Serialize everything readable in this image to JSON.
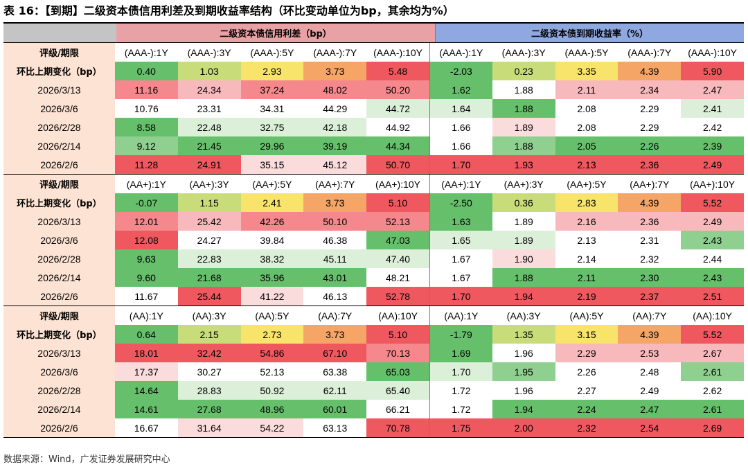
{
  "title": "表 16：【到期】二级资本债信用利差及到期收益率结构（环比变动单位为bp，其余均为%）",
  "header": {
    "spread_title": "二级资本债信用利差（bp）",
    "yield_title": "二级资本债到期收益率（%）"
  },
  "colors": {
    "corner": "#c4c4c4",
    "spread_header": "#e8a1a5",
    "yield_header": "#8fa9e0",
    "label_bg": "#fde3d3",
    "white": "#ffffff",
    "green_dark": "#66c06b",
    "green_mid": "#8fcf8f",
    "green_light": "#b6dfb4",
    "green_pale": "#dcefd9",
    "red_dark": "#f0585f",
    "red_mid": "#f5888d",
    "red_light": "#f8b9bc",
    "red_pale": "#fbdcdd",
    "yellow": "#f8e46a",
    "orange": "#f5a565",
    "yellow_green": "#c8dd7a"
  },
  "blocks": [
    {
      "label_header": "评级/期限",
      "spread_cols": [
        "(AAA-):1Y",
        "(AAA-):3Y",
        "(AAA-):5Y",
        "(AAA-):7Y",
        "(AAA-):10Y"
      ],
      "yield_cols": [
        "(AAA-):1Y",
        "(AAA-):3Y",
        "(AAA-):5Y",
        "(AAA-):7Y",
        "(AAA-):10Y"
      ],
      "rows": [
        {
          "label": "环比上期变化（bp）",
          "spread": [
            "0.40",
            "1.03",
            "2.93",
            "3.73",
            "5.48"
          ],
          "yield": [
            "-2.03",
            "0.23",
            "3.35",
            "4.39",
            "5.90"
          ]
        },
        {
          "label": "2026/3/13",
          "spread": [
            "11.16",
            "24.34",
            "37.24",
            "48.02",
            "50.20"
          ],
          "yield": [
            "1.62",
            "1.88",
            "2.11",
            "2.34",
            "2.47"
          ]
        },
        {
          "label": "2026/3/6",
          "spread": [
            "10.76",
            "23.31",
            "34.31",
            "44.29",
            "44.72"
          ],
          "yield": [
            "1.64",
            "1.88",
            "2.08",
            "2.29",
            "2.41"
          ]
        },
        {
          "label": "2026/2/28",
          "spread": [
            "8.58",
            "22.48",
            "32.75",
            "42.18",
            "44.92"
          ],
          "yield": [
            "1.66",
            "1.89",
            "2.08",
            "2.29",
            "2.42"
          ]
        },
        {
          "label": "2026/2/14",
          "spread": [
            "9.12",
            "21.45",
            "29.96",
            "39.19",
            "44.34"
          ],
          "yield": [
            "1.66",
            "1.88",
            "2.05",
            "2.26",
            "2.39"
          ]
        },
        {
          "label": "2026/2/6",
          "spread": [
            "11.28",
            "24.91",
            "35.15",
            "45.12",
            "50.70"
          ],
          "yield": [
            "1.70",
            "1.93",
            "2.13",
            "2.36",
            "2.49"
          ]
        }
      ],
      "row_colors": [
        {
          "spread": [
            "green_dark",
            "yellow_green",
            "yellow",
            "orange",
            "red_dark"
          ],
          "yield": [
            "green_dark",
            "yellow_green",
            "yellow",
            "orange",
            "red_dark"
          ]
        },
        {
          "spread": [
            "red_mid",
            "red_light",
            "red_mid",
            "red_mid",
            "red_mid"
          ],
          "yield": [
            "green_dark",
            "white",
            "red_light",
            "red_light",
            "red_light"
          ]
        },
        {
          "spread": [
            "white",
            "white",
            "white",
            "white",
            "green_pale"
          ],
          "yield": [
            "green_pale",
            "green_dark",
            "white",
            "white",
            "green_pale"
          ]
        },
        {
          "spread": [
            "green_dark",
            "green_pale",
            "green_pale",
            "green_pale",
            "white"
          ],
          "yield": [
            "white",
            "red_pale",
            "white",
            "white",
            "white"
          ]
        },
        {
          "spread": [
            "green_mid",
            "green_dark",
            "green_dark",
            "green_dark",
            "green_dark"
          ],
          "yield": [
            "white",
            "green_mid",
            "green_dark",
            "green_dark",
            "green_dark"
          ]
        },
        {
          "spread": [
            "red_dark",
            "red_dark",
            "red_pale",
            "red_pale",
            "red_dark"
          ],
          "yield": [
            "red_dark",
            "red_dark",
            "red_dark",
            "red_dark",
            "red_dark"
          ]
        }
      ]
    },
    {
      "label_header": "评级/期限",
      "spread_cols": [
        "(AA+):1Y",
        "(AA+):3Y",
        "(AA+):5Y",
        "(AA+):7Y",
        "(AA+):10Y"
      ],
      "yield_cols": [
        "(AA+):1Y",
        "(AA+):3Y",
        "(AA+):5Y",
        "(AA+):7Y",
        "(AA+):10Y"
      ],
      "rows": [
        {
          "label": "环比上期变化（bp）",
          "spread": [
            "-0.07",
            "1.15",
            "2.41",
            "3.73",
            "5.10"
          ],
          "yield": [
            "-2.50",
            "0.36",
            "2.83",
            "4.39",
            "5.52"
          ]
        },
        {
          "label": "2026/3/13",
          "spread": [
            "12.01",
            "25.42",
            "42.26",
            "50.10",
            "52.13"
          ],
          "yield": [
            "1.63",
            "1.89",
            "2.16",
            "2.36",
            "2.49"
          ]
        },
        {
          "label": "2026/3/6",
          "spread": [
            "12.08",
            "24.27",
            "39.84",
            "46.38",
            "47.03"
          ],
          "yield": [
            "1.65",
            "1.89",
            "2.13",
            "2.31",
            "2.43"
          ]
        },
        {
          "label": "2026/2/28",
          "spread": [
            "9.63",
            "22.83",
            "38.32",
            "45.11",
            "47.40"
          ],
          "yield": [
            "1.67",
            "1.90",
            "2.14",
            "2.32",
            "2.44"
          ]
        },
        {
          "label": "2026/2/14",
          "spread": [
            "9.60",
            "21.68",
            "35.96",
            "43.01",
            "48.21"
          ],
          "yield": [
            "1.67",
            "1.88",
            "2.11",
            "2.30",
            "2.43"
          ]
        },
        {
          "label": "2026/2/6",
          "spread": [
            "11.67",
            "25.44",
            "41.22",
            "46.13",
            "52.78"
          ],
          "yield": [
            "1.70",
            "1.94",
            "2.19",
            "2.37",
            "2.51"
          ]
        }
      ],
      "row_colors": [
        {
          "spread": [
            "green_dark",
            "yellow_green",
            "yellow",
            "orange",
            "red_dark"
          ],
          "yield": [
            "green_dark",
            "yellow_green",
            "yellow",
            "orange",
            "red_dark"
          ]
        },
        {
          "spread": [
            "red_mid",
            "red_light",
            "red_mid",
            "red_mid",
            "red_mid"
          ],
          "yield": [
            "green_dark",
            "white",
            "red_light",
            "red_light",
            "red_light"
          ]
        },
        {
          "spread": [
            "red_dark",
            "white",
            "white",
            "white",
            "green_dark"
          ],
          "yield": [
            "green_pale",
            "green_pale",
            "white",
            "white",
            "green_mid"
          ]
        },
        {
          "spread": [
            "green_dark",
            "green_pale",
            "green_pale",
            "green_pale",
            "green_pale"
          ],
          "yield": [
            "white",
            "red_pale",
            "white",
            "white",
            "white"
          ]
        },
        {
          "spread": [
            "green_dark",
            "green_dark",
            "green_dark",
            "green_dark",
            "white"
          ],
          "yield": [
            "white",
            "green_dark",
            "green_dark",
            "green_dark",
            "green_dark"
          ]
        },
        {
          "spread": [
            "white",
            "red_dark",
            "red_pale",
            "white",
            "red_dark"
          ],
          "yield": [
            "red_dark",
            "red_dark",
            "red_dark",
            "red_dark",
            "red_dark"
          ]
        }
      ]
    },
    {
      "label_header": "评级/期限",
      "spread_cols": [
        "(AA):1Y",
        "(AA):3Y",
        "(AA):5Y",
        "(AA):7Y",
        "(AA):10Y"
      ],
      "yield_cols": [
        "(AA):1Y",
        "(AA):3Y",
        "(AA):5Y",
        "(AA):7Y",
        "(AA):10Y"
      ],
      "rows": [
        {
          "label": "环比上期变化（bp）",
          "spread": [
            "0.64",
            "2.15",
            "2.73",
            "3.73",
            "5.10"
          ],
          "yield": [
            "-1.79",
            "1.35",
            "3.15",
            "4.39",
            "5.52"
          ]
        },
        {
          "label": "2026/3/13",
          "spread": [
            "18.01",
            "32.42",
            "54.86",
            "67.10",
            "70.13"
          ],
          "yield": [
            "1.69",
            "1.96",
            "2.29",
            "2.53",
            "2.67"
          ]
        },
        {
          "label": "2026/3/6",
          "spread": [
            "17.37",
            "30.27",
            "52.13",
            "63.38",
            "65.03"
          ],
          "yield": [
            "1.70",
            "1.95",
            "2.26",
            "2.48",
            "2.61"
          ]
        },
        {
          "label": "2026/2/28",
          "spread": [
            "14.64",
            "28.83",
            "50.92",
            "62.11",
            "65.40"
          ],
          "yield": [
            "1.72",
            "1.96",
            "2.27",
            "2.49",
            "2.62"
          ]
        },
        {
          "label": "2026/2/14",
          "spread": [
            "14.61",
            "27.68",
            "48.96",
            "60.01",
            "66.21"
          ],
          "yield": [
            "1.72",
            "1.94",
            "2.24",
            "2.47",
            "2.61"
          ]
        },
        {
          "label": "2026/2/6",
          "spread": [
            "16.67",
            "31.64",
            "54.22",
            "63.13",
            "70.78"
          ],
          "yield": [
            "1.75",
            "2.00",
            "2.32",
            "2.54",
            "2.69"
          ]
        }
      ],
      "row_colors": [
        {
          "spread": [
            "green_dark",
            "yellow_green",
            "yellow",
            "orange",
            "red_dark"
          ],
          "yield": [
            "green_dark",
            "yellow_green",
            "yellow",
            "orange",
            "red_dark"
          ]
        },
        {
          "spread": [
            "red_dark",
            "red_dark",
            "red_dark",
            "red_dark",
            "red_mid"
          ],
          "yield": [
            "green_dark",
            "white",
            "red_light",
            "red_light",
            "red_light"
          ]
        },
        {
          "spread": [
            "red_pale",
            "white",
            "white",
            "white",
            "green_dark"
          ],
          "yield": [
            "green_pale",
            "green_mid",
            "white",
            "white",
            "green_mid"
          ]
        },
        {
          "spread": [
            "green_dark",
            "green_pale",
            "green_pale",
            "green_pale",
            "green_pale"
          ],
          "yield": [
            "white",
            "white",
            "white",
            "white",
            "white"
          ]
        },
        {
          "spread": [
            "green_dark",
            "green_dark",
            "green_dark",
            "green_dark",
            "white"
          ],
          "yield": [
            "white",
            "green_dark",
            "green_dark",
            "green_dark",
            "green_dark"
          ]
        },
        {
          "spread": [
            "white",
            "red_pale",
            "red_pale",
            "white",
            "red_dark"
          ],
          "yield": [
            "red_dark",
            "red_dark",
            "red_dark",
            "red_dark",
            "red_dark"
          ]
        }
      ]
    }
  ],
  "source": "数据来源：Wind，广发证券发展研究中心"
}
